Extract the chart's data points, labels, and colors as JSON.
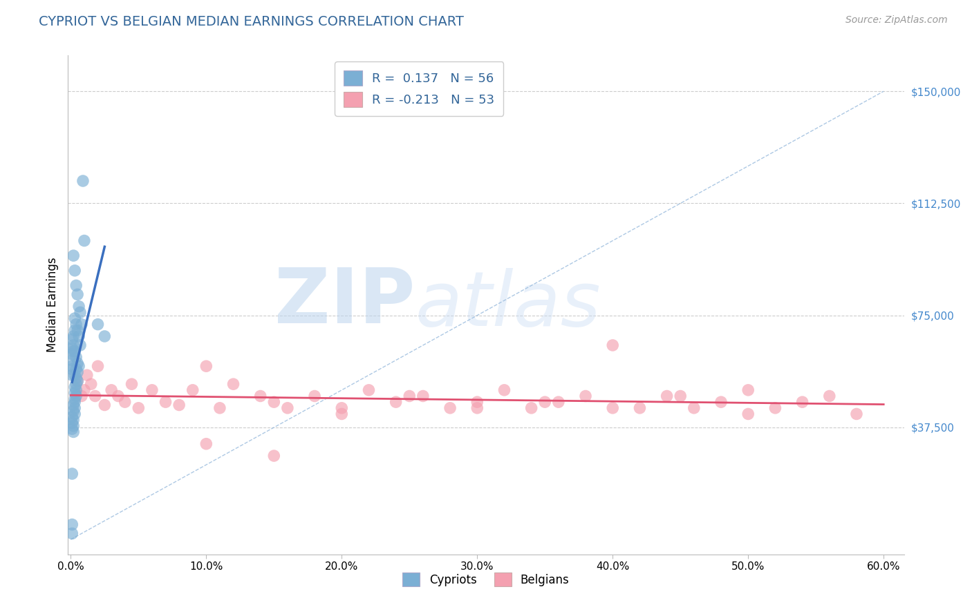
{
  "title": "CYPRIOT VS BELGIAN MEDIAN EARNINGS CORRELATION CHART",
  "source": "Source: ZipAtlas.com",
  "ylabel": "Median Earnings",
  "xlim": [
    -0.002,
    0.615
  ],
  "ylim": [
    -5000,
    162000
  ],
  "xtick_vals": [
    0.0,
    0.1,
    0.2,
    0.3,
    0.4,
    0.5,
    0.6
  ],
  "xtick_labels": [
    "0.0%",
    "10.0%",
    "20.0%",
    "30.0%",
    "40.0%",
    "50.0%",
    "60.0%"
  ],
  "ytick_vals": [
    37500,
    75000,
    112500,
    150000
  ],
  "ytick_labels": [
    "$37,500",
    "$75,000",
    "$112,500",
    "$150,000"
  ],
  "cypriot_color": "#7BAFD4",
  "belgian_color": "#F4A0B0",
  "cypriot_line_color": "#3A6FBF",
  "belgian_line_color": "#E05070",
  "diag_color": "#99BBDD",
  "cypriot_R": 0.137,
  "cypriot_N": 56,
  "belgian_R": -0.213,
  "belgian_N": 53,
  "background_color": "#FFFFFF",
  "grid_color": "#CCCCCC",
  "title_color": "#336699",
  "watermark_zip": "ZIP",
  "watermark_atlas": "atlas",
  "cypriot_x": [
    0.002,
    0.003,
    0.004,
    0.005,
    0.006,
    0.007,
    0.008,
    0.009,
    0.01,
    0.003,
    0.004,
    0.005,
    0.006,
    0.007,
    0.003,
    0.004,
    0.005,
    0.006,
    0.004,
    0.005,
    0.003,
    0.004,
    0.005,
    0.004,
    0.003,
    0.004,
    0.003,
    0.004,
    0.003,
    0.003,
    0.002,
    0.003,
    0.002,
    0.003,
    0.001,
    0.002,
    0.001,
    0.002,
    0.001,
    0.002,
    0.001,
    0.001,
    0.001,
    0.001,
    0.001,
    0.002,
    0.001,
    0.002,
    0.001,
    0.002,
    0.003,
    0.02,
    0.025,
    0.001,
    0.001,
    0.001
  ],
  "cypriot_y": [
    95000,
    90000,
    85000,
    82000,
    78000,
    76000,
    72000,
    120000,
    100000,
    74000,
    72000,
    70000,
    68000,
    65000,
    63000,
    61000,
    59000,
    58000,
    57000,
    56000,
    55000,
    54000,
    53000,
    52000,
    51000,
    50000,
    49000,
    48000,
    47000,
    46000,
    45000,
    44000,
    43000,
    42000,
    41000,
    40000,
    39000,
    38000,
    37000,
    36000,
    55000,
    57000,
    58000,
    60000,
    62000,
    63000,
    64000,
    65000,
    67000,
    68000,
    70000,
    72000,
    68000,
    2000,
    22000,
    5000
  ],
  "belgian_x": [
    0.005,
    0.008,
    0.01,
    0.012,
    0.015,
    0.018,
    0.02,
    0.025,
    0.03,
    0.035,
    0.04,
    0.045,
    0.05,
    0.06,
    0.07,
    0.08,
    0.09,
    0.1,
    0.11,
    0.12,
    0.14,
    0.15,
    0.16,
    0.18,
    0.2,
    0.22,
    0.24,
    0.26,
    0.28,
    0.3,
    0.32,
    0.34,
    0.36,
    0.38,
    0.4,
    0.42,
    0.44,
    0.46,
    0.48,
    0.5,
    0.52,
    0.54,
    0.56,
    0.58,
    0.2,
    0.25,
    0.3,
    0.35,
    0.4,
    0.45,
    0.5,
    0.1,
    0.15
  ],
  "belgian_y": [
    53000,
    48000,
    50000,
    55000,
    52000,
    48000,
    58000,
    45000,
    50000,
    48000,
    46000,
    52000,
    44000,
    50000,
    46000,
    45000,
    50000,
    58000,
    44000,
    52000,
    48000,
    46000,
    44000,
    48000,
    44000,
    50000,
    46000,
    48000,
    44000,
    46000,
    50000,
    44000,
    46000,
    48000,
    65000,
    44000,
    48000,
    44000,
    46000,
    50000,
    44000,
    46000,
    48000,
    42000,
    42000,
    48000,
    44000,
    46000,
    44000,
    48000,
    42000,
    32000,
    28000
  ]
}
